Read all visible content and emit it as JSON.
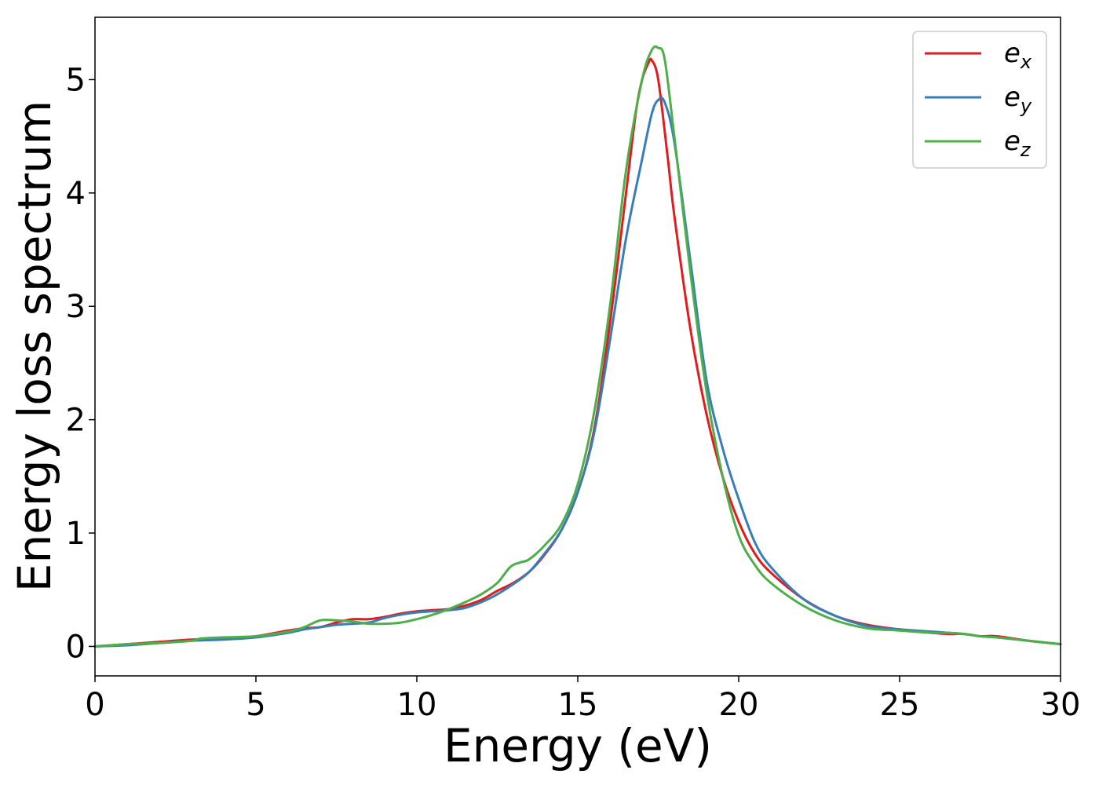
{
  "chart_data": {
    "type": "line",
    "title": "",
    "xlabel": "Energy (eV)",
    "ylabel": "Energy loss spectrum",
    "xlim": [
      0,
      30
    ],
    "ylim": [
      -0.26,
      5.55
    ],
    "xticks": [
      0,
      5,
      10,
      15,
      20,
      25,
      30
    ],
    "yticks": [
      0,
      1,
      2,
      3,
      4,
      5
    ],
    "x_tick_labels": [
      "0",
      "5",
      "10",
      "15",
      "20",
      "25",
      "30"
    ],
    "y_tick_labels": [
      "0",
      "1",
      "2",
      "3",
      "4",
      "5"
    ],
    "grid": false,
    "legend_position": "top-right",
    "series": [
      {
        "name": "e_x",
        "legend_main": "e",
        "legend_sub": "x",
        "color": "#e41a1c",
        "x": [
          0,
          1,
          2,
          3,
          4,
          5,
          6,
          6.5,
          7,
          7.5,
          8,
          8.5,
          9,
          9.5,
          10,
          10.5,
          11,
          11.5,
          12,
          12.5,
          13,
          13.5,
          14,
          14.5,
          15,
          15.5,
          16,
          16.5,
          16.8,
          17.0,
          17.2,
          17.3,
          17.5,
          17.8,
          18,
          18.5,
          19,
          19.5,
          20,
          20.5,
          21,
          22,
          23,
          24,
          25,
          26,
          26.5,
          27,
          27.5,
          28,
          29,
          30
        ],
        "y": [
          0.0,
          0.02,
          0.04,
          0.06,
          0.07,
          0.09,
          0.14,
          0.16,
          0.17,
          0.21,
          0.24,
          0.24,
          0.26,
          0.29,
          0.31,
          0.32,
          0.33,
          0.36,
          0.41,
          0.49,
          0.56,
          0.66,
          0.82,
          1.03,
          1.36,
          1.9,
          2.85,
          4.0,
          4.7,
          5.0,
          5.15,
          5.17,
          5.0,
          4.3,
          3.8,
          2.8,
          2.05,
          1.5,
          1.1,
          0.82,
          0.65,
          0.42,
          0.27,
          0.19,
          0.15,
          0.12,
          0.11,
          0.11,
          0.09,
          0.09,
          0.05,
          0.02
        ]
      },
      {
        "name": "e_y",
        "legend_main": "e",
        "legend_sub": "y",
        "color": "#377eb8",
        "x": [
          0,
          1,
          2,
          3,
          4,
          5,
          6,
          6.5,
          7,
          7.5,
          8,
          8.5,
          9,
          9.5,
          10,
          10.5,
          11,
          11.5,
          12,
          12.5,
          13,
          13.5,
          14,
          14.5,
          15,
          15.5,
          16,
          16.5,
          17,
          17.3,
          17.5,
          17.7,
          18,
          18.5,
          19,
          19.5,
          20,
          20.5,
          21,
          22,
          23,
          24,
          25,
          26,
          27,
          27.5,
          28,
          29,
          30
        ],
        "y": [
          0.0,
          0.01,
          0.03,
          0.05,
          0.06,
          0.08,
          0.12,
          0.15,
          0.17,
          0.19,
          0.2,
          0.21,
          0.25,
          0.28,
          0.3,
          0.31,
          0.32,
          0.34,
          0.39,
          0.46,
          0.55,
          0.66,
          0.83,
          1.03,
          1.36,
          1.87,
          2.7,
          3.6,
          4.3,
          4.7,
          4.82,
          4.8,
          4.45,
          3.4,
          2.35,
          1.75,
          1.3,
          0.92,
          0.7,
          0.42,
          0.27,
          0.18,
          0.15,
          0.13,
          0.11,
          0.09,
          0.08,
          0.05,
          0.02
        ]
      },
      {
        "name": "e_z",
        "legend_main": "e",
        "legend_sub": "z",
        "color": "#4daf4a",
        "x": [
          0,
          1,
          2,
          3,
          3.3,
          4,
          5,
          6,
          6.5,
          7,
          7.5,
          8,
          8.5,
          9,
          9.5,
          10,
          10.5,
          11,
          11.5,
          12,
          12.5,
          12.9,
          13.2,
          13.5,
          14,
          14.5,
          15,
          15.5,
          16,
          16.5,
          17,
          17.3,
          17.5,
          17.7,
          18,
          18.5,
          19,
          19.5,
          20,
          20.5,
          21,
          22,
          23,
          24,
          25,
          26,
          26.5,
          27,
          27.5,
          28,
          29,
          30
        ],
        "y": [
          0.0,
          0.02,
          0.03,
          0.05,
          0.07,
          0.08,
          0.09,
          0.13,
          0.17,
          0.23,
          0.23,
          0.22,
          0.2,
          0.2,
          0.21,
          0.24,
          0.28,
          0.33,
          0.39,
          0.46,
          0.56,
          0.7,
          0.74,
          0.77,
          0.9,
          1.08,
          1.43,
          2.05,
          3.0,
          4.2,
          5.0,
          5.26,
          5.28,
          5.18,
          4.5,
          3.3,
          2.25,
          1.5,
          0.98,
          0.72,
          0.56,
          0.36,
          0.23,
          0.16,
          0.14,
          0.12,
          0.12,
          0.11,
          0.09,
          0.08,
          0.05,
          0.02
        ]
      }
    ]
  }
}
